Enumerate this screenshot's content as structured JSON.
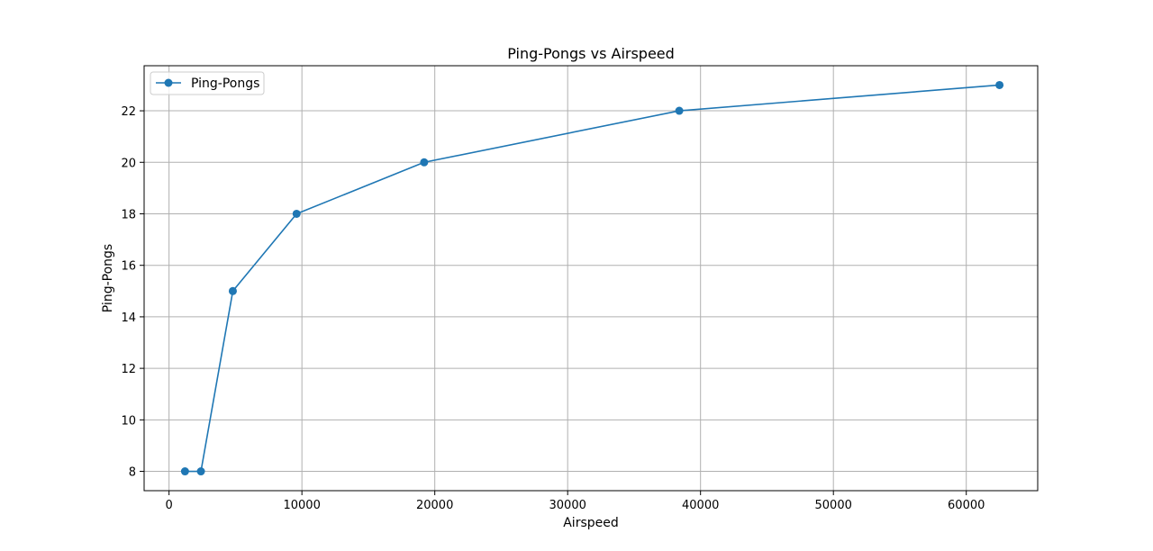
{
  "chart_data": {
    "type": "line",
    "title": "Ping-Pongs vs Airspeed",
    "xlabel": "Airspeed",
    "ylabel": "Ping-Pongs",
    "xlim": [
      -1875,
      65375
    ],
    "ylim": [
      7.25,
      23.75
    ],
    "x_ticks": [
      0,
      10000,
      20000,
      30000,
      40000,
      50000,
      60000
    ],
    "y_ticks": [
      8,
      10,
      12,
      14,
      16,
      18,
      20,
      22
    ],
    "grid": true,
    "legend_position": "top-left",
    "series": [
      {
        "name": "Ping-Pongs",
        "color": "#1f77b4",
        "marker": "circle",
        "x": [
          1200,
          2400,
          4800,
          9600,
          19200,
          38400,
          62500
        ],
        "y": [
          8,
          8,
          15,
          18,
          20,
          22,
          23
        ]
      }
    ]
  }
}
